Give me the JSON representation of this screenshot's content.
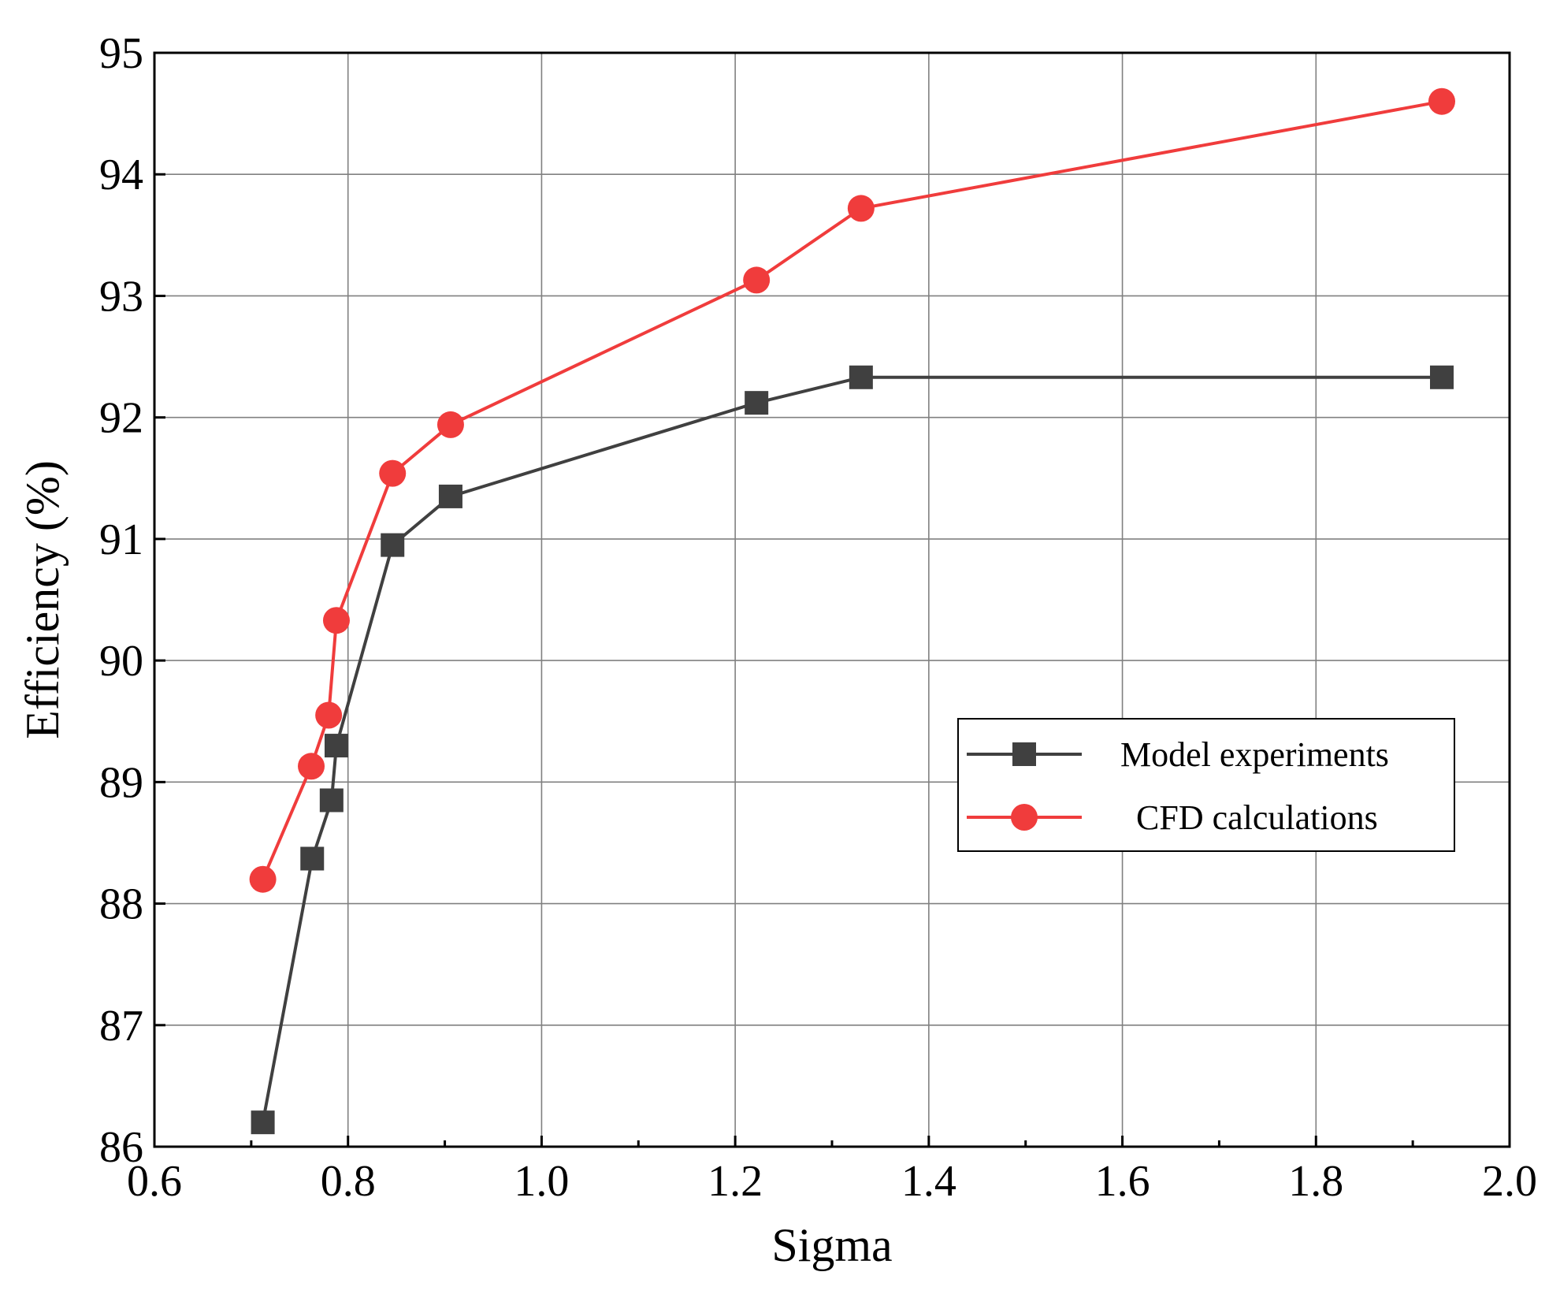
{
  "chart_data": {
    "type": "line",
    "title": "",
    "xlabel": "Sigma",
    "ylabel": "Efficiency (%)",
    "xlim": [
      0.6,
      2.0
    ],
    "ylim": [
      86,
      95
    ],
    "xticks": [
      0.6,
      0.8,
      1.0,
      1.2,
      1.4,
      1.6,
      1.8,
      2.0
    ],
    "xtick_labels": [
      "0.6",
      "0.8",
      "1.0",
      "1.2",
      "1.4",
      "1.6",
      "1.8",
      "2.0"
    ],
    "yticks": [
      86,
      87,
      88,
      89,
      90,
      91,
      92,
      93,
      94,
      95
    ],
    "ytick_labels": [
      "86",
      "87",
      "88",
      "89",
      "90",
      "91",
      "92",
      "93",
      "94",
      "95"
    ],
    "grid": true,
    "legend_position": "center-right",
    "series": [
      {
        "name": "Model experiments",
        "color": "#404040",
        "marker": "square",
        "x": [
          0.712,
          0.763,
          0.783,
          0.788,
          0.846,
          0.906,
          1.222,
          1.33,
          1.93
        ],
        "y": [
          86.2,
          88.37,
          88.85,
          89.3,
          90.95,
          91.35,
          92.12,
          92.33,
          92.33
        ]
      },
      {
        "name": "CFD calculations",
        "color": "#f03c3c",
        "marker": "circle",
        "x": [
          0.712,
          0.762,
          0.78,
          0.788,
          0.846,
          0.906,
          1.222,
          1.33,
          1.93
        ],
        "y": [
          88.2,
          89.13,
          89.55,
          90.33,
          91.54,
          91.94,
          93.13,
          93.72,
          94.6
        ]
      }
    ]
  }
}
